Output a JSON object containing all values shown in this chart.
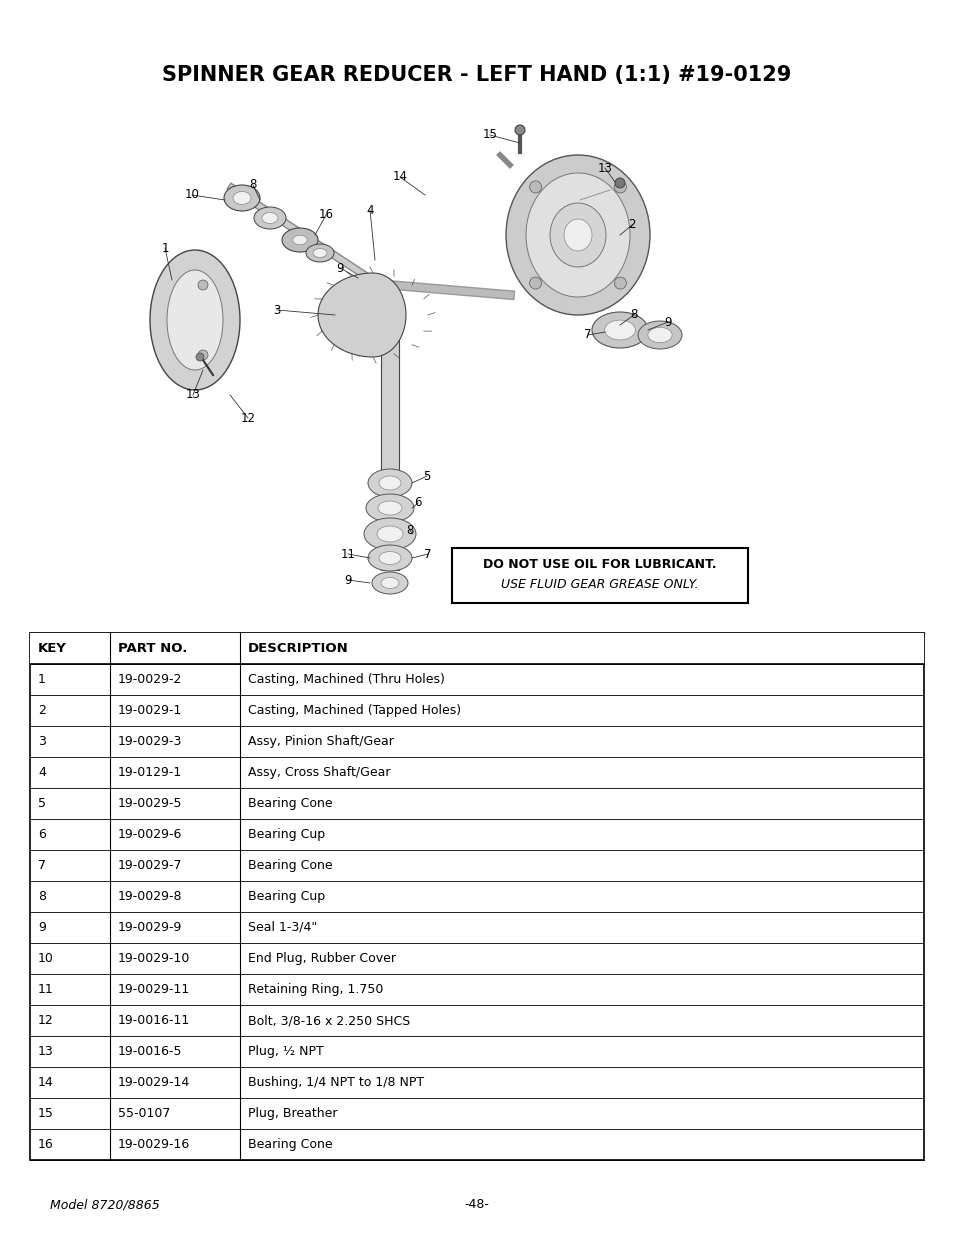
{
  "title": "SPINNER GEAR REDUCER - LEFT HAND (1:1) #19-0129",
  "warning_text1": "USE ",
  "warning_italic": "FLUID GEAR GREASE",
  "warning_bold": " ONLY",
  "warning_line2_bold": "DO NOT",
  "warning_line2_rest": " USE OIL FOR LUBRICANT.",
  "footer_left": "Model 8720/8865",
  "footer_center": "-48-",
  "table_headers": [
    "KEY",
    "PART NO.",
    "DESCRIPTION"
  ],
  "table_rows": [
    [
      "1",
      "19-0029-2",
      "Casting, Machined (Thru Holes)"
    ],
    [
      "2",
      "19-0029-1",
      "Casting, Machined (Tapped Holes)"
    ],
    [
      "3",
      "19-0029-3",
      "Assy, Pinion Shaft/Gear"
    ],
    [
      "4",
      "19-0129-1",
      "Assy, Cross Shaft/Gear"
    ],
    [
      "5",
      "19-0029-5",
      "Bearing Cone"
    ],
    [
      "6",
      "19-0029-6",
      "Bearing Cup"
    ],
    [
      "7",
      "19-0029-7",
      "Bearing Cone"
    ],
    [
      "8",
      "19-0029-8",
      "Bearing Cup"
    ],
    [
      "9",
      "19-0029-9",
      "Seal 1-3/4\""
    ],
    [
      "10",
      "19-0029-10",
      "End Plug, Rubber Cover"
    ],
    [
      "11",
      "19-0029-11",
      "Retaining Ring, 1.750"
    ],
    [
      "12",
      "19-0016-11",
      "Bolt, 3/8-16 x 2.250 SHCS"
    ],
    [
      "13",
      "19-0016-5",
      "Plug, ½ NPT"
    ],
    [
      "14",
      "19-0029-14",
      "Bushing, 1/4 NPT to 1/8 NPT"
    ],
    [
      "15",
      "55-0107",
      "Plug, Breather"
    ],
    [
      "16",
      "19-0029-16",
      "Bearing Cone"
    ]
  ],
  "background_color": "#ffffff",
  "text_color": "#000000"
}
